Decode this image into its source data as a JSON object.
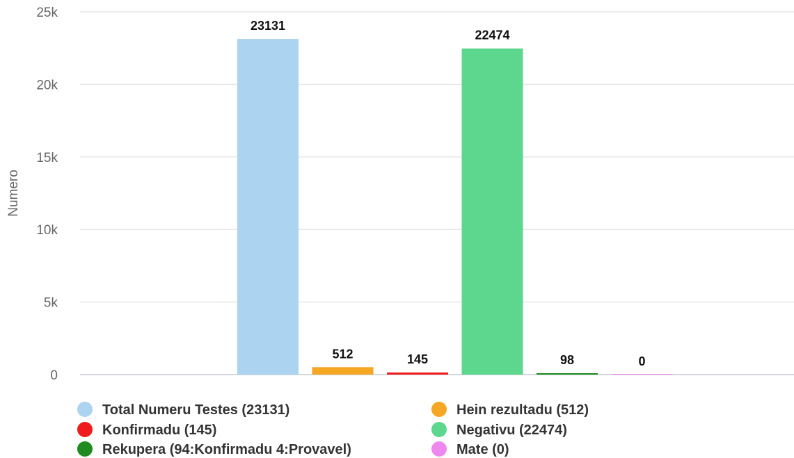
{
  "chart_data": {
    "type": "bar",
    "title": "",
    "xlabel": "",
    "ylabel": "Numero",
    "ylim": [
      0,
      25000
    ],
    "yticks": [
      0,
      5000,
      10000,
      15000,
      20000,
      25000
    ],
    "ytick_labels": [
      "0",
      "5k",
      "10k",
      "15k",
      "20k",
      "25k"
    ],
    "grid": true,
    "legend_position": "bottom",
    "series": [
      {
        "name": "Total Numeru Testes (23131)",
        "value": 23131,
        "label": "23131",
        "color": "#acd3ef"
      },
      {
        "name": "Hein rezultadu (512)",
        "value": 512,
        "label": "512",
        "color": "#f5a623"
      },
      {
        "name": "Konfirmadu (145)",
        "value": 145,
        "label": "145",
        "color": "#ee1c1c"
      },
      {
        "name": "Negativu (22474)",
        "value": 22474,
        "label": "22474",
        "color": "#5dd68e"
      },
      {
        "name": "Rekupera (94:Konfirmadu 4:Provavel)",
        "value": 98,
        "label": "98",
        "color": "#1f8a1f"
      },
      {
        "name": "Mate (0)",
        "value": 0,
        "label": "0",
        "color": "#ee88ee"
      }
    ],
    "legend_order": [
      0,
      1,
      2,
      3,
      4,
      5
    ]
  }
}
